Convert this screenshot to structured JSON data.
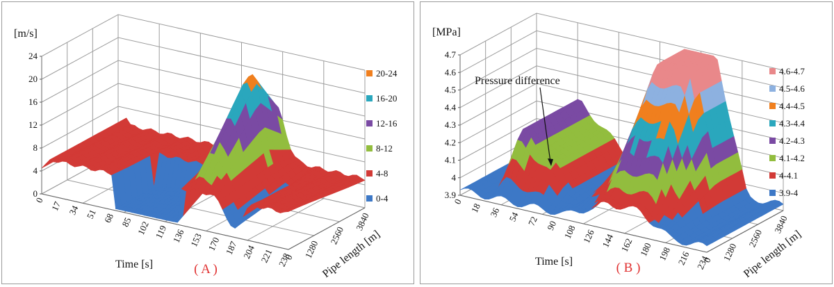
{
  "chart_data": [
    {
      "type": "surface3d",
      "panel_label": "( A )",
      "z_unit": "[m/s]",
      "z_ticks": [
        "0",
        "4",
        "8",
        "12",
        "16",
        "20",
        "24"
      ],
      "zlim": [
        0,
        24
      ],
      "x_label": "Time [s]",
      "x_ticks": [
        "0",
        "17",
        "34",
        "51",
        "68",
        "85",
        "102",
        "119",
        "136",
        "153",
        "170",
        "187",
        "204",
        "221",
        "238"
      ],
      "y_label": "Pipe length [m]",
      "y_ticks": [
        "0",
        "1280",
        "2560",
        "3840"
      ],
      "legend": [
        {
          "label": "20-24",
          "color": "#f07f1e"
        },
        {
          "label": "16-20",
          "color": "#2aa7bd"
        },
        {
          "label": "12-16",
          "color": "#7a4aa3"
        },
        {
          "label": "8-12",
          "color": "#92bd3e"
        },
        {
          "label": "4-8",
          "color": "#d23a36"
        },
        {
          "label": "0-4",
          "color": "#3d78c6"
        }
      ]
    },
    {
      "type": "surface3d",
      "panel_label": "( B )",
      "z_unit": "[MPa]",
      "z_ticks": [
        "3.9",
        "4",
        "4.1",
        "4.2",
        "4.3",
        "4.4",
        "4.5",
        "4.6",
        "4.7"
      ],
      "zlim": [
        3.9,
        4.7
      ],
      "x_label": "Time [s]",
      "x_ticks": [
        "0",
        "18",
        "36",
        "54",
        "72",
        "90",
        "108",
        "126",
        "144",
        "162",
        "180",
        "198",
        "216",
        "234"
      ],
      "y_label": "Pipe length [m]",
      "y_ticks": [
        "0",
        "1280",
        "2560",
        "3840"
      ],
      "annotation": "Pressure difference",
      "legend": [
        {
          "label": "4.6-4.7",
          "color": "#e9888a"
        },
        {
          "label": "4.5-4.6",
          "color": "#8db1e0"
        },
        {
          "label": "4.4-4.5",
          "color": "#f07f1e"
        },
        {
          "label": "4.3-4.4",
          "color": "#2aa7bd"
        },
        {
          "label": "4.2-4.3",
          "color": "#7a4aa3"
        },
        {
          "label": "4.1-4.2",
          "color": "#92bd3e"
        },
        {
          "label": "4-4.1",
          "color": "#d23a36"
        },
        {
          "label": "3.9-4",
          "color": "#3d78c6"
        }
      ]
    }
  ]
}
